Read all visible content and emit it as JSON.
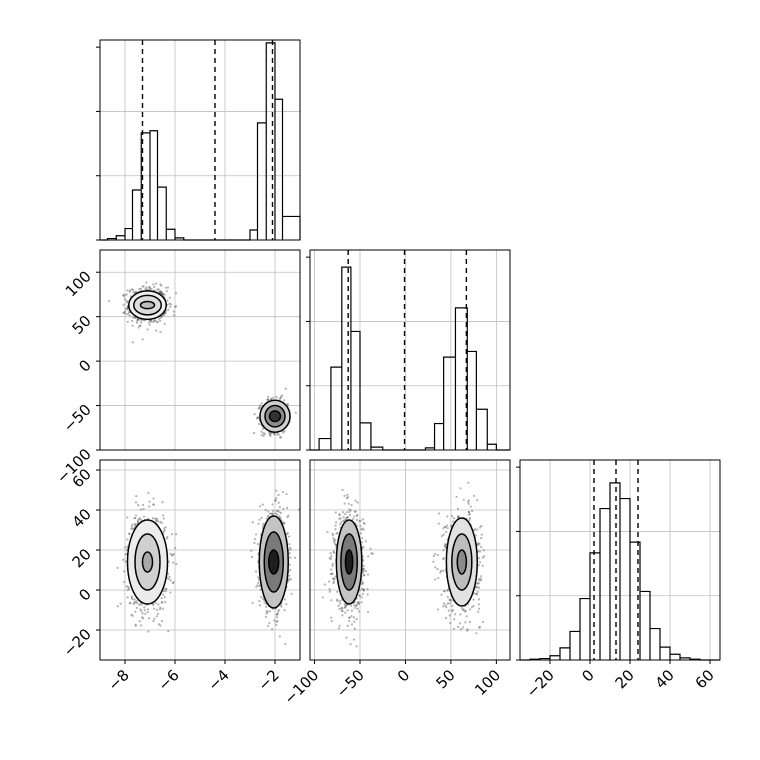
{
  "chart_data": [
    {
      "type": "histogram",
      "panel": "hist-x",
      "xlim": [
        -9,
        -1
      ],
      "ymax": 2.8,
      "grid": true,
      "bins": [
        {
          "x0": -8.7,
          "x1": -8.35,
          "count": 0.02
        },
        {
          "x0": -8.35,
          "x1": -8.0,
          "count": 0.06
        },
        {
          "x0": -8.0,
          "x1": -7.7,
          "count": 0.16
        },
        {
          "x0": -7.7,
          "x1": -7.35,
          "count": 0.7
        },
        {
          "x0": -7.35,
          "x1": -7.0,
          "count": 1.5
        },
        {
          "x0": -7.0,
          "x1": -6.7,
          "count": 1.53
        },
        {
          "x0": -6.7,
          "x1": -6.35,
          "count": 0.74
        },
        {
          "x0": -6.35,
          "x1": -6.0,
          "count": 0.15
        },
        {
          "x0": -6.0,
          "x1": -5.65,
          "count": 0.03
        },
        {
          "x0": -3.0,
          "x1": -2.7,
          "count": 0.14
        },
        {
          "x0": -2.7,
          "x1": -2.35,
          "count": 1.64
        },
        {
          "x0": -2.35,
          "x1": -2.0,
          "count": 2.76
        },
        {
          "x0": -2.0,
          "x1": -1.7,
          "count": 1.97
        },
        {
          "x0": -1.7,
          "x1": -1.0,
          "count": 0.33
        }
      ],
      "quantiles": [
        -7.3,
        -4.4,
        -2.1
      ]
    },
    {
      "type": "histogram",
      "panel": "hist-y",
      "xlim": [
        -105,
        115
      ],
      "ymax": 2.8,
      "grid": true,
      "bins": [
        {
          "x0": -95,
          "x1": -82,
          "count": 0.16
        },
        {
          "x0": -82,
          "x1": -70,
          "count": 1.16
        },
        {
          "x0": -70,
          "x1": -60,
          "count": 2.56
        },
        {
          "x0": -60,
          "x1": -50,
          "count": 1.66
        },
        {
          "x0": -50,
          "x1": -38,
          "count": 0.38
        },
        {
          "x0": -38,
          "x1": -25,
          "count": 0.04
        },
        {
          "x0": 22,
          "x1": 32,
          "count": 0.03
        },
        {
          "x0": 32,
          "x1": 42,
          "count": 0.37
        },
        {
          "x0": 42,
          "x1": 55,
          "count": 1.3
        },
        {
          "x0": 55,
          "x1": 68,
          "count": 1.99
        },
        {
          "x0": 68,
          "x1": 78,
          "count": 1.38
        },
        {
          "x0": 78,
          "x1": 90,
          "count": 0.57
        },
        {
          "x0": 90,
          "x1": 100,
          "count": 0.08
        }
      ],
      "quantiles": [
        -63,
        -1,
        67
      ]
    },
    {
      "type": "histogram",
      "panel": "hist-z",
      "xlim": [
        -35,
        65
      ],
      "ymax": 2.8,
      "grid": true,
      "bins": [
        {
          "x0": -30,
          "x1": -25,
          "count": 0.01
        },
        {
          "x0": -25,
          "x1": -20,
          "count": 0.02
        },
        {
          "x0": -20,
          "x1": -15,
          "count": 0.06
        },
        {
          "x0": -15,
          "x1": -10,
          "count": 0.17
        },
        {
          "x0": -10,
          "x1": -5,
          "count": 0.4
        },
        {
          "x0": -5,
          "x1": 0,
          "count": 0.86
        },
        {
          "x0": 0,
          "x1": 5,
          "count": 1.5
        },
        {
          "x0": 5,
          "x1": 10,
          "count": 2.12
        },
        {
          "x0": 10,
          "x1": 15,
          "count": 2.48
        },
        {
          "x0": 15,
          "x1": 20,
          "count": 2.26
        },
        {
          "x0": 20,
          "x1": 25,
          "count": 1.65
        },
        {
          "x0": 25,
          "x1": 30,
          "count": 0.96
        },
        {
          "x0": 30,
          "x1": 35,
          "count": 0.44
        },
        {
          "x0": 35,
          "x1": 40,
          "count": 0.18
        },
        {
          "x0": 40,
          "x1": 45,
          "count": 0.08
        },
        {
          "x0": 45,
          "x1": 50,
          "count": 0.03
        },
        {
          "x0": 50,
          "x1": 55,
          "count": 0.01
        }
      ],
      "quantiles": [
        2,
        13,
        24
      ]
    },
    {
      "type": "scatter-density",
      "panel": "x-y",
      "xlim": [
        -9,
        -1
      ],
      "ylim": [
        -100,
        125
      ],
      "grid": true,
      "clusters": [
        {
          "cx": -7.1,
          "cy": 63,
          "sx": 0.38,
          "sy": 10,
          "n": 700,
          "contours": [
            {
              "rx": 0.28,
              "ry": 4,
              "fill": "#bdbdbd",
              "open": true
            },
            {
              "rx": 0.55,
              "ry": 11,
              "fill": "#dcdcdc"
            },
            {
              "rx": 0.75,
              "ry": 16,
              "fill": "#f0f0f0"
            }
          ]
        },
        {
          "cx": -2.0,
          "cy": -62,
          "sx": 0.26,
          "sy": 9,
          "n": 650,
          "contours": [
            {
              "rx": 0.22,
              "ry": 6,
              "fill": "#333333"
            },
            {
              "rx": 0.4,
              "ry": 12,
              "fill": "#8c8c8c"
            },
            {
              "rx": 0.6,
              "ry": 18,
              "fill": "#cfcfcf"
            }
          ]
        }
      ],
      "yticks": [
        -100,
        -50,
        0,
        50,
        100
      ]
    },
    {
      "type": "scatter-density",
      "panel": "x-z",
      "xlim": [
        -9,
        -1
      ],
      "ylim": [
        -35,
        65
      ],
      "grid": true,
      "clusters": [
        {
          "cx": -7.1,
          "cy": 14,
          "sx": 0.4,
          "sy": 12,
          "n": 900,
          "contours": [
            {
              "rx": 0.2,
              "ry": 5,
              "fill": "#a8a8a8",
              "open": true
            },
            {
              "rx": 0.5,
              "ry": 14,
              "fill": "#d0d0d0"
            },
            {
              "rx": 0.8,
              "ry": 21,
              "fill": "#ececec"
            }
          ]
        },
        {
          "cx": -2.05,
          "cy": 14,
          "sx": 0.28,
          "sy": 12,
          "n": 850,
          "contours": [
            {
              "rx": 0.2,
              "ry": 6,
              "fill": "#1e1e1e"
            },
            {
              "rx": 0.38,
              "ry": 15,
              "fill": "#7a7a7a"
            },
            {
              "rx": 0.58,
              "ry": 23,
              "fill": "#c4c4c4"
            }
          ]
        }
      ],
      "xticks": [
        -8,
        -6,
        -4,
        -2
      ],
      "yticks": [
        -20,
        0,
        20,
        40,
        60
      ]
    },
    {
      "type": "scatter-density",
      "panel": "y-z",
      "xlim": [
        -105,
        115
      ],
      "ylim": [
        -35,
        65
      ],
      "grid": true,
      "clusters": [
        {
          "cx": -62,
          "cy": 14,
          "sx": 8,
          "sy": 12,
          "n": 850,
          "contours": [
            {
              "rx": 4,
              "ry": 6,
              "fill": "#1e1e1e"
            },
            {
              "rx": 9,
              "ry": 14,
              "fill": "#7a7a7a"
            },
            {
              "rx": 14,
              "ry": 21,
              "fill": "#c4c4c4"
            }
          ]
        },
        {
          "cx": 62,
          "cy": 14,
          "sx": 10,
          "sy": 12,
          "n": 850,
          "contours": [
            {
              "rx": 5,
              "ry": 6,
              "fill": "#8a8a8a"
            },
            {
              "rx": 11,
              "ry": 14,
              "fill": "#bdbdbd"
            },
            {
              "rx": 17,
              "ry": 22,
              "fill": "#e2e2e2"
            }
          ]
        }
      ],
      "xticks": [
        -100,
        -50,
        0,
        50,
        100
      ]
    }
  ],
  "hist_z_ticks": [
    -20,
    0,
    20,
    40,
    60
  ]
}
